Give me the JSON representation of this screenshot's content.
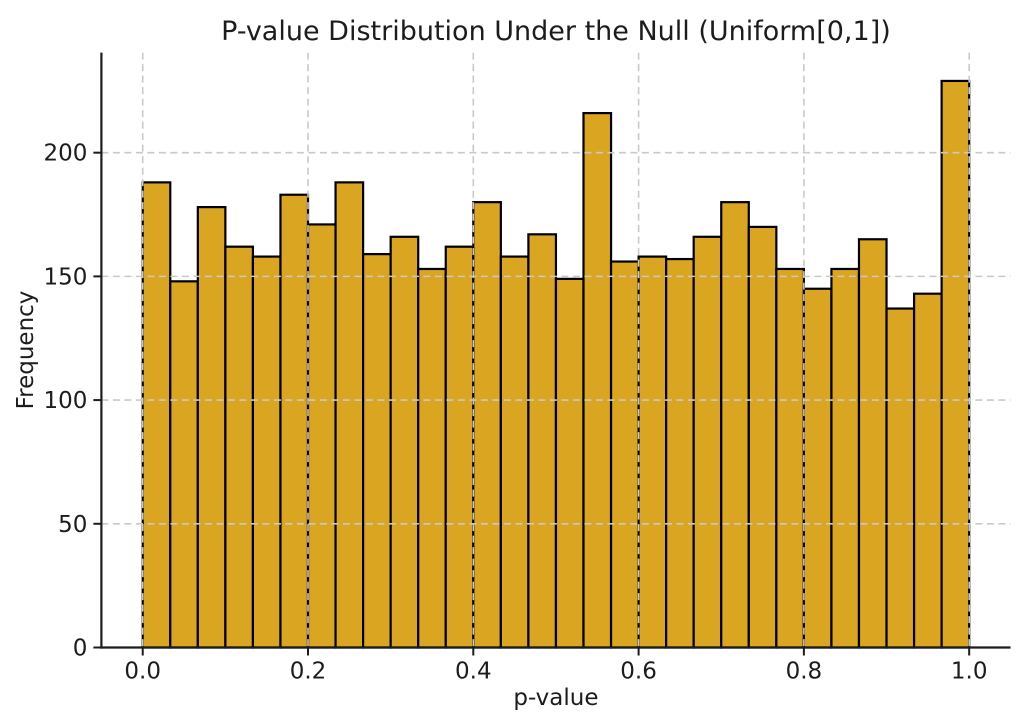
{
  "chart_data": {
    "type": "bar",
    "chart_kind": "histogram",
    "title": "P-value Distribution Under the Null (Uniform[0,1])",
    "xlabel": "p-value",
    "ylabel": "Frequency",
    "bin_range": [
      0,
      1
    ],
    "n_bins": 30,
    "values": [
      188,
      148,
      178,
      162,
      158,
      183,
      171,
      188,
      159,
      166,
      153,
      162,
      180,
      158,
      167,
      149,
      216,
      156,
      158,
      157,
      166,
      180,
      170,
      153,
      145,
      153,
      165,
      137,
      143,
      229
    ],
    "xticks": [
      "0.0",
      "0.2",
      "0.4",
      "0.6",
      "0.8",
      "1.0"
    ],
    "yticks": [
      "0",
      "50",
      "100",
      "150",
      "200"
    ],
    "xlim": [
      -0.05,
      1.05
    ],
    "ylim": [
      0,
      240.45
    ],
    "grid": "dashed, both axes, drawn above bars",
    "legend": "none",
    "colors": {
      "bar_fill": "#DAA520",
      "bar_edge": "#000000",
      "grid": "#c9c9c9",
      "axis": "#1c1c1c",
      "text": "#1c1c1c",
      "background": "#ffffff"
    }
  }
}
